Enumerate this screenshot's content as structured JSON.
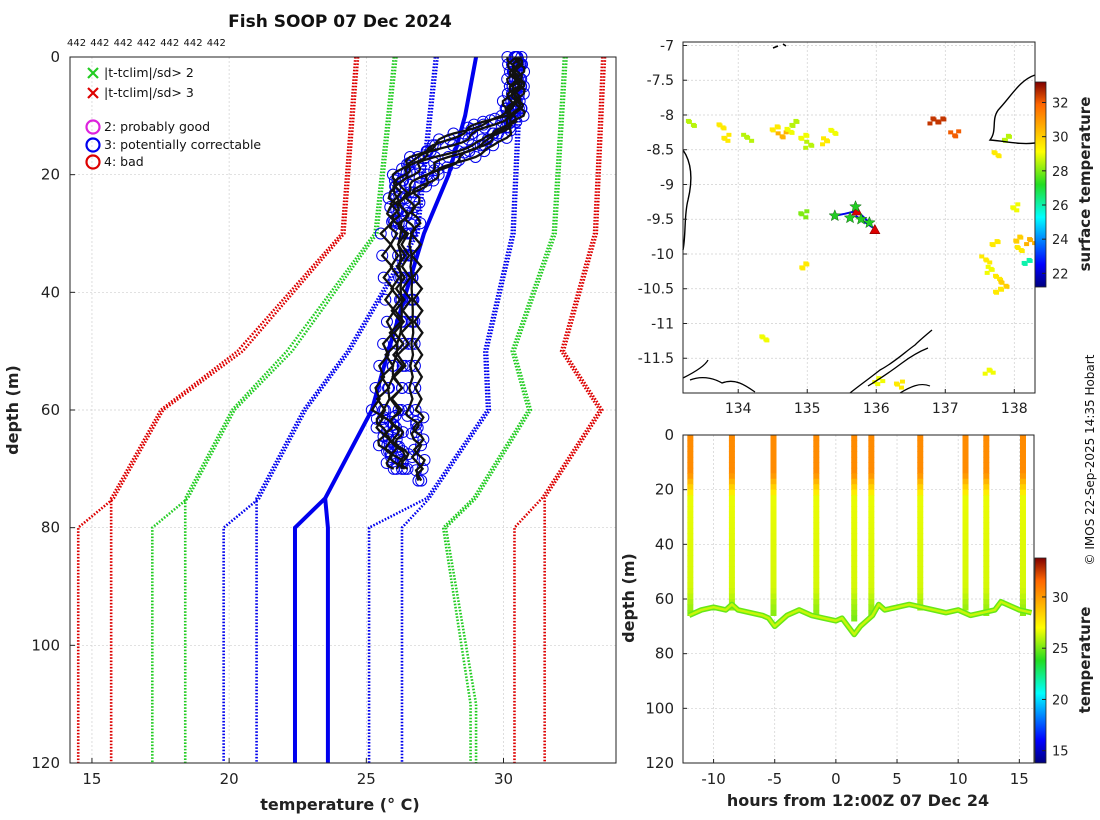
{
  "chart_data": [
    {
      "type": "line",
      "panel": "profile",
      "title": "Fish SOOP 07 Dec 2024",
      "count_labels": [
        "442",
        "442",
        "442",
        "442",
        "442",
        "442",
        "442"
      ],
      "xlabel": "temperature (° C)",
      "ylabel": "depth (m)",
      "xlim": [
        14.2,
        34.1
      ],
      "ylim": [
        0,
        120
      ],
      "y_reversed": true,
      "xticks": [
        15,
        20,
        25,
        30
      ],
      "yticks": [
        0,
        20,
        40,
        60,
        80,
        100,
        120
      ],
      "grid": true,
      "legend": [
        {
          "label": "|t-tclim|/sd> 2",
          "marker": "x",
          "color": "#22cc22"
        },
        {
          "label": "|t-tclim|/sd> 3",
          "marker": "x",
          "color": "#dd0000"
        },
        {
          "label": "2: probably good",
          "marker": "o",
          "color": "#dd22dd"
        },
        {
          "label": "3: potentially correctable",
          "marker": "o",
          "color": "#0000ee"
        },
        {
          "label": "4: bad",
          "marker": "o",
          "color": "#dd0000"
        }
      ],
      "climatology": {
        "depths": [
          0,
          30,
          50,
          60,
          75,
          80,
          110,
          120
        ],
        "series": [
          {
            "name": "clim-3sd-lo",
            "color": "#dd0000",
            "temps": [
              24.6,
              24.1,
              20.3,
              17.5,
              15.7,
              15.7,
              15.7,
              15.7
            ]
          },
          {
            "name": "clim-3sd-lo-b",
            "color": "#dd0000",
            "temps": [
              24.7,
              24.2,
              20.5,
              17.6,
              15.8,
              14.5,
              14.5,
              14.5
            ]
          },
          {
            "name": "clim-2sd-lo",
            "color": "#22cc22",
            "temps": [
              26.0,
              25.3,
              22.1,
              20.1,
              18.4,
              18.4,
              18.4,
              18.4
            ]
          },
          {
            "name": "clim-2sd-lo-b",
            "color": "#22cc22",
            "temps": [
              26.1,
              25.4,
              22.3,
              20.2,
              18.5,
              17.2,
              17.2,
              17.2
            ]
          },
          {
            "name": "clim-1sd-lo",
            "color": "#0000ee",
            "temps": [
              27.5,
              26.8,
              24.3,
              22.7,
              21.0,
              21.0,
              21.0,
              21.0
            ]
          },
          {
            "name": "clim-1sd-lo-b",
            "color": "#0000ee",
            "temps": [
              27.6,
              26.9,
              24.4,
              22.8,
              21.1,
              19.8,
              19.8,
              19.8
            ]
          },
          {
            "name": "clim-1sd-hi",
            "color": "#0000ee",
            "temps": [
              30.6,
              30.3,
              29.3,
              29.4,
              27.2,
              25.1,
              25.1,
              25.1
            ]
          },
          {
            "name": "clim-1sd-hi-b",
            "color": "#0000ee",
            "temps": [
              30.7,
              30.4,
              29.4,
              29.5,
              27.3,
              26.3,
              26.3,
              26.3
            ]
          },
          {
            "name": "clim-2sd-hi",
            "color": "#22cc22",
            "temps": [
              32.2,
              31.8,
              30.3,
              30.9,
              28.9,
              27.8,
              28.8,
              28.8
            ]
          },
          {
            "name": "clim-2sd-hi-b",
            "color": "#22cc22",
            "temps": [
              32.3,
              31.9,
              30.4,
              31.0,
              29.0,
              27.9,
              29.0,
              29.0
            ]
          },
          {
            "name": "clim-3sd-hi",
            "color": "#dd0000",
            "temps": [
              33.6,
              33.3,
              32.1,
              33.5,
              31.4,
              30.4,
              30.4,
              30.4
            ]
          },
          {
            "name": "clim-3sd-hi-b",
            "color": "#dd0000",
            "temps": [
              33.7,
              33.4,
              32.2,
              33.6,
              31.5,
              31.5,
              31.5,
              31.5
            ]
          }
        ],
        "mean": {
          "name": "climatology-mean",
          "color": "#0000ee",
          "depths": [
            0,
            10,
            20,
            30,
            50,
            60,
            75,
            80,
            120
          ],
          "temps": [
            29.0,
            28.6,
            28.0,
            27.1,
            25.8,
            25.2,
            23.5,
            22.4,
            22.4
          ]
        },
        "mean_b": {
          "name": "climatology-mean-b",
          "color": "#0000ee",
          "depths": [
            75,
            80,
            120
          ],
          "temps": [
            23.5,
            23.6,
            23.6
          ]
        }
      },
      "profiles": [
        {
          "depths": [
            0,
            5,
            10,
            14,
            18,
            22,
            30,
            45,
            60,
            65,
            70
          ],
          "temps": [
            30.5,
            30.5,
            30.4,
            29.4,
            27.0,
            26.3,
            26.4,
            26.5,
            26.0,
            26.2,
            26.5
          ]
        },
        {
          "depths": [
            0,
            5,
            10,
            14,
            18,
            22,
            30,
            45,
            60,
            65,
            70
          ],
          "temps": [
            30.3,
            30.4,
            30.2,
            28.6,
            26.4,
            25.9,
            26.2,
            26.3,
            25.7,
            25.9,
            26.1
          ]
        },
        {
          "depths": [
            0,
            5,
            10,
            15,
            19,
            23,
            30,
            45,
            60,
            65,
            72
          ],
          "temps": [
            30.6,
            30.6,
            30.6,
            29.8,
            27.8,
            26.8,
            26.8,
            26.9,
            26.9,
            26.9,
            27.0
          ]
        },
        {
          "depths": [
            0,
            5,
            10,
            13,
            17,
            22,
            30,
            45,
            60,
            66,
            70
          ],
          "temps": [
            30.4,
            30.4,
            30.1,
            28.2,
            26.7,
            26.1,
            26.0,
            26.1,
            25.5,
            25.6,
            26.0
          ]
        },
        {
          "depths": [
            0,
            5,
            11,
            15,
            20,
            24,
            30,
            45,
            60,
            64,
            72
          ],
          "temps": [
            30.5,
            30.5,
            30.3,
            29.2,
            27.4,
            26.6,
            26.6,
            26.7,
            26.6,
            26.8,
            26.9
          ]
        },
        {
          "depths": [
            0,
            5,
            10,
            12,
            16,
            21,
            30,
            45,
            60,
            66,
            70
          ],
          "temps": [
            30.3,
            30.3,
            30.0,
            28.8,
            27.2,
            26.2,
            25.7,
            25.9,
            25.3,
            25.8,
            26.3
          ]
        },
        {
          "depths": [
            0,
            5,
            10,
            14,
            18,
            23,
            30,
            45,
            60,
            64,
            70
          ],
          "temps": [
            30.5,
            30.6,
            30.5,
            29.6,
            27.6,
            26.4,
            26.3,
            26.2,
            26.1,
            26.0,
            26.4
          ]
        }
      ],
      "profile_color": "#111111",
      "flag_marker_color": "#0000ee"
    },
    {
      "type": "scatter",
      "panel": "map",
      "xlim": [
        133.2,
        138.3
      ],
      "ylim": [
        -12.0,
        -6.95
      ],
      "xticks": [
        134,
        135,
        136,
        137,
        138
      ],
      "yticks": [
        -7,
        -7.5,
        -8,
        -8.5,
        -9,
        -9.5,
        -10,
        -10.5,
        -11,
        -11.5
      ],
      "colorbar": {
        "label": "surface temperature",
        "min": 21.2,
        "max": 33.2,
        "ticks": [
          22,
          24,
          26,
          28,
          30,
          32
        ]
      },
      "track": [
        [
          135.4,
          -9.45
        ],
        [
          135.55,
          -9.42
        ],
        [
          135.72,
          -9.38
        ],
        [
          135.85,
          -9.5
        ],
        [
          135.95,
          -9.62
        ],
        [
          135.7,
          -9.45
        ]
      ],
      "stations_good": [
        [
          135.4,
          -9.45
        ],
        [
          135.7,
          -9.32
        ],
        [
          135.78,
          -9.5
        ],
        [
          135.9,
          -9.55
        ],
        [
          135.62,
          -9.48
        ]
      ],
      "stations_bad": [
        [
          135.72,
          -9.38
        ],
        [
          135.98,
          -9.65
        ]
      ],
      "sst_patches": [
        {
          "lon": 133.3,
          "lat": -8.1,
          "t": 28.5
        },
        {
          "lon": 133.7,
          "lat": -8.15,
          "t": 29.5
        },
        {
          "lon": 133.8,
          "lat": -8.3,
          "t": 29.5
        },
        {
          "lon": 134.1,
          "lat": -8.3,
          "t": 28.5
        },
        {
          "lon": 134.5,
          "lat": -8.15,
          "t": 29.5
        },
        {
          "lon": 134.6,
          "lat": -8.25,
          "t": 30.5
        },
        {
          "lon": 134.7,
          "lat": -8.2,
          "t": 29.0
        },
        {
          "lon": 134.8,
          "lat": -8.1,
          "t": 28.5
        },
        {
          "lon": 134.9,
          "lat": -8.3,
          "t": 29.0
        },
        {
          "lon": 135.0,
          "lat": -8.4,
          "t": 28.5
        },
        {
          "lon": 135.2,
          "lat": -8.35,
          "t": 29.5
        },
        {
          "lon": 135.35,
          "lat": -8.2,
          "t": 29.0
        },
        {
          "lon": 136.8,
          "lat": -8.05,
          "t": 32.5
        },
        {
          "lon": 136.9,
          "lat": -8.05,
          "t": 32.5
        },
        {
          "lon": 137.1,
          "lat": -8.25,
          "t": 32.0
        },
        {
          "lon": 137.7,
          "lat": -8.55,
          "t": 29.5
        },
        {
          "lon": 138.0,
          "lat": -9.3,
          "t": 29.0
        },
        {
          "lon": 134.9,
          "lat": -9.4,
          "t": 28.0
        },
        {
          "lon": 137.7,
          "lat": -9.8,
          "t": 29.5
        },
        {
          "lon": 138.0,
          "lat": -9.75,
          "t": 30.0
        },
        {
          "lon": 138.05,
          "lat": -9.9,
          "t": 29.5
        },
        {
          "lon": 138.2,
          "lat": -9.8,
          "t": 30.5
        },
        {
          "lon": 138.15,
          "lat": -10.1,
          "t": 26.0
        },
        {
          "lon": 137.55,
          "lat": -10.05,
          "t": 29.5
        },
        {
          "lon": 137.6,
          "lat": -10.2,
          "t": 29.0
        },
        {
          "lon": 137.75,
          "lat": -10.3,
          "t": 29.5
        },
        {
          "lon": 137.8,
          "lat": -10.4,
          "t": 30.0
        },
        {
          "lon": 137.75,
          "lat": -10.5,
          "t": 29.5
        },
        {
          "lon": 134.9,
          "lat": -10.15,
          "t": 29.5
        },
        {
          "lon": 134.35,
          "lat": -11.2,
          "t": 29.0
        },
        {
          "lon": 136.0,
          "lat": -11.8,
          "t": 29.0
        },
        {
          "lon": 136.3,
          "lat": -11.85,
          "t": 29.5
        },
        {
          "lon": 137.6,
          "lat": -11.65,
          "t": 29.0
        },
        {
          "lon": 137.85,
          "lat": -8.3,
          "t": 28.5
        }
      ]
    },
    {
      "type": "heatmap",
      "panel": "section",
      "xlabel": "hours from 12:00Z 07 Dec 24",
      "ylabel": "depth (m)",
      "xlim": [
        -12.5,
        16.2
      ],
      "ylim": [
        0,
        120
      ],
      "y_reversed": true,
      "xticks": [
        -10,
        -5,
        0,
        5,
        10,
        15
      ],
      "yticks": [
        0,
        20,
        40,
        60,
        80,
        100,
        120
      ],
      "colorbar": {
        "label": "temperature",
        "min": 13.8,
        "max": 33.8,
        "ticks": [
          15,
          20,
          25,
          30
        ]
      },
      "profile_times": [
        -11.9,
        -8.5,
        -5.1,
        -1.6,
        1.5,
        2.9,
        6.9,
        10.6,
        12.3,
        15.3
      ],
      "drop_max_depth": [
        64,
        63,
        64,
        65,
        66,
        65,
        63,
        63,
        65,
        64
      ],
      "bottom_line": {
        "hours": [
          -12,
          -11,
          -10,
          -9,
          -8.5,
          -8,
          -7,
          -6,
          -5.5,
          -5,
          -4,
          -3,
          -2,
          -1,
          0,
          0.5,
          1,
          1.5,
          2,
          2.5,
          3,
          3.5,
          4,
          5,
          6,
          7,
          8,
          9,
          10,
          11,
          12,
          13,
          13.5,
          14,
          15,
          16
        ],
        "depth": [
          66,
          64,
          63,
          64,
          62,
          64,
          65,
          66,
          67,
          70,
          66,
          64,
          66,
          67,
          68,
          67,
          70,
          73,
          70,
          68,
          66,
          62,
          64,
          63,
          62,
          63,
          64,
          65,
          64,
          66,
          65,
          64,
          61,
          62,
          64,
          65
        ]
      }
    }
  ],
  "credit": "© IMOS 22-Sep-2025 14:35 Hobart"
}
